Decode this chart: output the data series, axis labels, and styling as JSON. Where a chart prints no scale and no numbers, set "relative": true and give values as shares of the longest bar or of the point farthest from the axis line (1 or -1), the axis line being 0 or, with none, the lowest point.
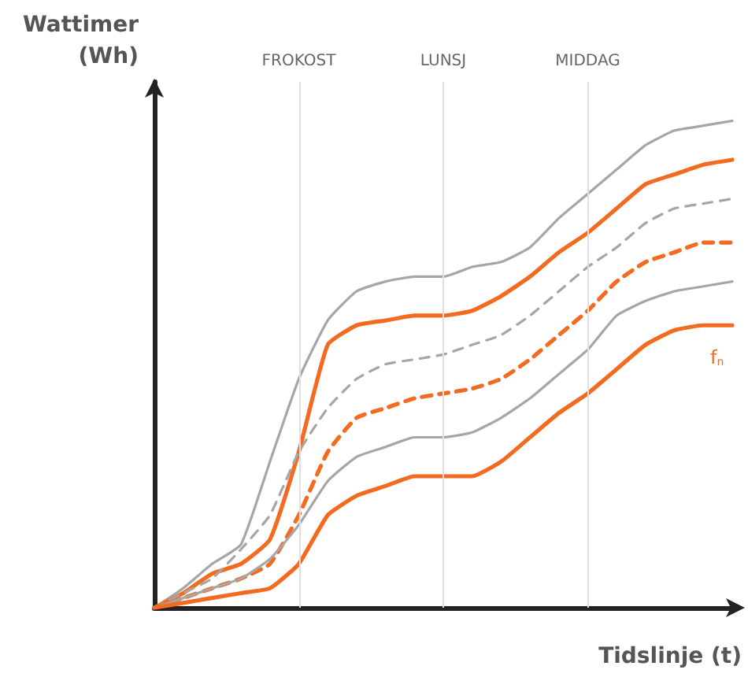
{
  "chart_data": {
    "type": "line",
    "relative": true,
    "xlabel": "Tidslinje (t)",
    "ylabel": "Wattimer\n(Wh)",
    "categories": [
      null,
      null,
      null,
      null,
      null,
      "FROKOST",
      null,
      null,
      null,
      null,
      "LUNSJ",
      null,
      null,
      null,
      null,
      "MIDDAG",
      null,
      null,
      null,
      null,
      null
    ],
    "series": [
      {
        "color": "#a6a6a6",
        "line_style": "solid",
        "values": [
          0,
          0.04,
          0.09,
          0.13,
          0.3,
          0.47,
          0.59,
          0.65,
          0.67,
          0.68,
          0.68,
          0.7,
          0.71,
          0.74,
          0.8,
          0.85,
          0.9,
          0.95,
          0.98,
          0.99,
          1
        ]
      },
      {
        "color": "#f26b21",
        "line_style": "solid",
        "values": [
          0,
          0.03,
          0.07,
          0.09,
          0.14,
          0.32,
          0.54,
          0.58,
          0.59,
          0.6,
          0.6,
          0.61,
          0.64,
          0.68,
          0.73,
          0.77,
          0.82,
          0.87,
          0.89,
          0.91,
          0.92
        ]
      },
      {
        "color": "#a6a6a6",
        "line_style": "dashed",
        "values": [
          0,
          0.03,
          0.06,
          0.12,
          0.19,
          0.32,
          0.41,
          0.47,
          0.5,
          0.51,
          0.52,
          0.54,
          0.56,
          0.6,
          0.65,
          0.7,
          0.74,
          0.79,
          0.82,
          0.83,
          0.84
        ]
      },
      {
        "color": "#f26b21",
        "line_style": "dashed",
        "values": [
          0,
          0.02,
          0.04,
          0.06,
          0.09,
          0.19,
          0.32,
          0.39,
          0.41,
          0.43,
          0.44,
          0.45,
          0.47,
          0.51,
          0.56,
          0.61,
          0.67,
          0.71,
          0.73,
          0.75,
          0.75
        ]
      },
      {
        "color": "#a6a6a6",
        "line_style": "solid",
        "values": [
          0,
          0.02,
          0.04,
          0.06,
          0.1,
          0.17,
          0.26,
          0.31,
          0.33,
          0.35,
          0.35,
          0.36,
          0.39,
          0.43,
          0.48,
          0.53,
          0.6,
          0.63,
          0.65,
          0.66,
          0.67
        ]
      },
      {
        "name": "f$_{n}$",
        "color": "#f26b21",
        "line_style": "solid",
        "values": [
          0,
          0.01,
          0.02,
          0.03,
          0.04,
          0.09,
          0.19,
          0.23,
          0.25,
          0.27,
          0.27,
          0.27,
          0.3,
          0.35,
          0.4,
          0.44,
          0.49,
          0.54,
          0.57,
          0.58,
          0.58
        ]
      }
    ],
    "ref_lines": [
      {
        "axis": "x",
        "value": "FROKOST",
        "color": "#e0e0e0"
      },
      {
        "axis": "x",
        "value": "LUNSJ",
        "color": "#e0e0e0"
      },
      {
        "axis": "x",
        "value": "MIDDAG",
        "color": "#e0e0e0"
      }
    ],
    "grid": false,
    "legend": false,
    "marker": "none",
    "tick_labels": "x"
  }
}
